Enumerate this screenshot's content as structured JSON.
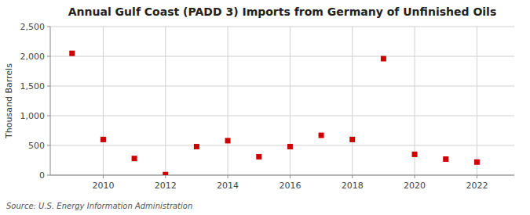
{
  "chart_data": {
    "type": "scatter",
    "title": "Annual Gulf Coast (PADD 3) Imports from Germany of Unfinished Oils",
    "y_label": "Thousand Barrels",
    "annotations": [
      "Source: U.S. Energy Information Administration"
    ],
    "x": [
      2009,
      2010,
      2011,
      2012,
      2013,
      2014,
      2015,
      2016,
      2017,
      2018,
      2019,
      2020,
      2021,
      2022
    ],
    "values": [
      2050,
      600,
      280,
      10,
      480,
      580,
      310,
      480,
      670,
      600,
      1960,
      350,
      270,
      220
    ],
    "color": "#cc0000",
    "marker": "square",
    "grid": true,
    "xlim": [
      2008.3,
      2023.2
    ],
    "xticks": [
      2010,
      2012,
      2014,
      2016,
      2018,
      2020,
      2022
    ],
    "ylim": [
      0,
      2500
    ],
    "yticks": [
      0,
      500,
      {
        "value": 1000,
        "label": "1,000"
      },
      {
        "value": 1500,
        "label": "1,500"
      },
      {
        "value": 2000,
        "label": "2,000"
      },
      {
        "value": 2500,
        "label": "2,500"
      }
    ]
  }
}
